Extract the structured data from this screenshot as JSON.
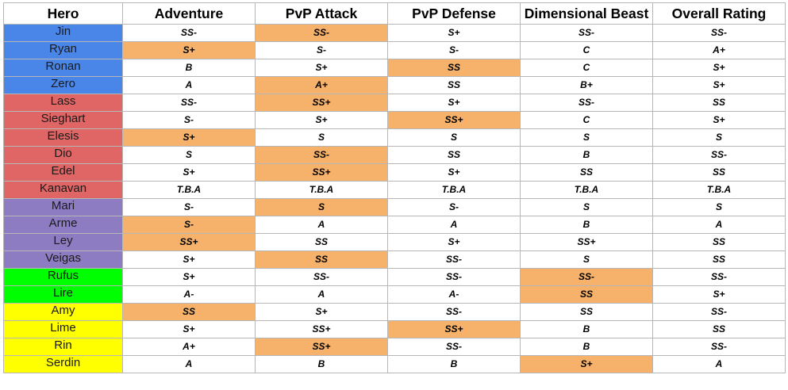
{
  "columns": [
    "Hero",
    "Adventure",
    "PvP Attack",
    "PvP Defense",
    "Dimensional Beast",
    "Overall Rating"
  ],
  "colors": {
    "highlight": "#f6b26b",
    "blue": "#4a86e8",
    "red": "#e06666",
    "purple": "#8e7cc3",
    "green": "#00ff00",
    "yellow": "#ffff00",
    "plain": "#ffffff"
  },
  "rows": [
    {
      "hero": "Jin",
      "group": "blue",
      "ratings": [
        "SS-",
        "SS-",
        "S+",
        "SS-",
        "SS-"
      ],
      "highlight": [
        false,
        true,
        false,
        false,
        false
      ]
    },
    {
      "hero": "Ryan",
      "group": "blue",
      "ratings": [
        "S+",
        "S-",
        "S-",
        "C",
        "A+"
      ],
      "highlight": [
        true,
        false,
        false,
        false,
        false
      ]
    },
    {
      "hero": "Ronan",
      "group": "blue",
      "ratings": [
        "B",
        "S+",
        "SS",
        "C",
        "S+"
      ],
      "highlight": [
        false,
        false,
        true,
        false,
        false
      ]
    },
    {
      "hero": "Zero",
      "group": "blue",
      "ratings": [
        "A",
        "A+",
        "SS",
        "B+",
        "S+"
      ],
      "highlight": [
        false,
        true,
        false,
        false,
        false
      ]
    },
    {
      "hero": "Lass",
      "group": "red",
      "ratings": [
        "SS-",
        "SS+",
        "S+",
        "SS-",
        "SS"
      ],
      "highlight": [
        false,
        true,
        false,
        false,
        false
      ]
    },
    {
      "hero": "Sieghart",
      "group": "red",
      "ratings": [
        "S-",
        "S+",
        "SS+",
        "C",
        "S+"
      ],
      "highlight": [
        false,
        false,
        true,
        false,
        false
      ]
    },
    {
      "hero": "Elesis",
      "group": "red",
      "ratings": [
        "S+",
        "S",
        "S",
        "S",
        "S"
      ],
      "highlight": [
        true,
        false,
        false,
        false,
        false
      ]
    },
    {
      "hero": "Dio",
      "group": "red",
      "ratings": [
        "S",
        "SS-",
        "SS",
        "B",
        "SS-"
      ],
      "highlight": [
        false,
        true,
        false,
        false,
        false
      ]
    },
    {
      "hero": "Edel",
      "group": "red",
      "ratings": [
        "S+",
        "SS+",
        "S+",
        "SS",
        "SS"
      ],
      "highlight": [
        false,
        true,
        false,
        false,
        false
      ]
    },
    {
      "hero": "Kanavan",
      "group": "red",
      "ratings": [
        "T.B.A",
        "T.B.A",
        "T.B.A",
        "T.B.A",
        "T.B.A"
      ],
      "highlight": [
        false,
        false,
        false,
        false,
        false
      ]
    },
    {
      "hero": "Mari",
      "group": "purple",
      "ratings": [
        "S-",
        "S",
        "S-",
        "S",
        "S"
      ],
      "highlight": [
        false,
        true,
        false,
        false,
        false
      ]
    },
    {
      "hero": "Arme",
      "group": "purple",
      "ratings": [
        "S-",
        "A",
        "A",
        "B",
        "A"
      ],
      "highlight": [
        true,
        false,
        false,
        false,
        false
      ]
    },
    {
      "hero": "Ley",
      "group": "purple",
      "ratings": [
        "SS+",
        "SS",
        "S+",
        "SS+",
        "SS"
      ],
      "highlight": [
        true,
        false,
        false,
        false,
        false
      ]
    },
    {
      "hero": "Veigas",
      "group": "purple",
      "ratings": [
        "S+",
        "SS",
        "SS-",
        "S",
        "SS"
      ],
      "highlight": [
        false,
        true,
        false,
        false,
        false
      ]
    },
    {
      "hero": "Rufus",
      "group": "green",
      "ratings": [
        "S+",
        "SS-",
        "SS-",
        "SS-",
        "SS-"
      ],
      "highlight": [
        false,
        false,
        false,
        true,
        false
      ]
    },
    {
      "hero": "Lire",
      "group": "green",
      "ratings": [
        "A-",
        "A",
        "A-",
        "SS",
        "S+"
      ],
      "highlight": [
        false,
        false,
        false,
        true,
        false
      ]
    },
    {
      "hero": "Amy",
      "group": "yellow",
      "ratings": [
        "SS",
        "S+",
        "SS-",
        "SS",
        "SS-"
      ],
      "highlight": [
        true,
        false,
        false,
        false,
        false
      ]
    },
    {
      "hero": "Lime",
      "group": "yellow",
      "ratings": [
        "S+",
        "SS+",
        "SS+",
        "B",
        "SS"
      ],
      "highlight": [
        false,
        false,
        true,
        false,
        false
      ]
    },
    {
      "hero": "Rin",
      "group": "yellow",
      "ratings": [
        "A+",
        "SS+",
        "SS-",
        "B",
        "SS-"
      ],
      "highlight": [
        false,
        true,
        false,
        false,
        false
      ]
    },
    {
      "hero": "Serdin",
      "group": "yellow",
      "ratings": [
        "A",
        "B",
        "B",
        "S+",
        "A"
      ],
      "highlight": [
        false,
        false,
        false,
        true,
        false
      ]
    }
  ]
}
